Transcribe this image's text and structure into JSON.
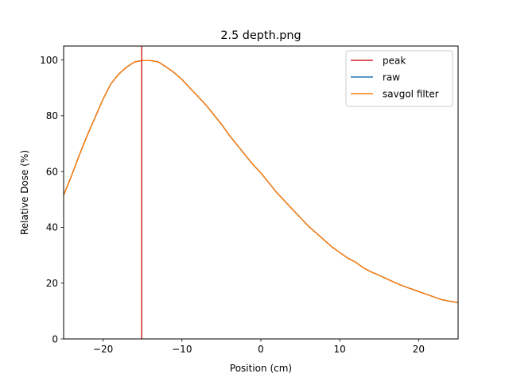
{
  "chart_data": {
    "type": "line",
    "title": "2.5 depth.png",
    "xlabel": "Position (cm)",
    "ylabel": "Relative Dose (%)",
    "xlim": [
      -25,
      25
    ],
    "ylim": [
      0,
      105
    ],
    "xticks": [
      -20,
      -10,
      0,
      10,
      20
    ],
    "xtick_labels": [
      "−20",
      "−10",
      "0",
      "10",
      "20"
    ],
    "yticks": [
      0,
      20,
      40,
      60,
      80,
      100
    ],
    "ytick_labels": [
      "0",
      "20",
      "40",
      "60",
      "80",
      "100"
    ],
    "grid": false,
    "legend_position": "top-right",
    "peak": {
      "name": "peak",
      "x": -15.1,
      "color": "#d62728"
    },
    "series": [
      {
        "name": "raw",
        "color": "#1f77b4",
        "x": [
          -25,
          -24,
          -23,
          -22,
          -21,
          -20,
          -19,
          -18,
          -17,
          -16,
          -15,
          -14,
          -13,
          -12,
          -11,
          -10,
          -9,
          -8,
          -7,
          -6,
          -5,
          -4,
          -3,
          -2,
          -1,
          0,
          1,
          2,
          3,
          4,
          5,
          6,
          7,
          8,
          9,
          10,
          11,
          12,
          13,
          14,
          15,
          16,
          17,
          18,
          19,
          20,
          21,
          22,
          23,
          24,
          25
        ],
        "y": [
          51.5,
          58.5,
          66,
          73,
          79.5,
          86,
          91.5,
          95,
          97.5,
          99.3,
          99.8,
          99.8,
          99.3,
          97.5,
          95.5,
          93,
          90,
          87,
          84,
          80.5,
          77,
          73,
          69.5,
          66,
          62.5,
          59.5,
          56,
          52.5,
          49.5,
          46.5,
          43.5,
          40.5,
          38,
          35.5,
          33,
          31,
          29,
          27.5,
          25.5,
          24,
          22.8,
          21.5,
          20.2,
          19,
          18,
          17,
          16,
          15,
          14,
          13.5,
          13
        ]
      },
      {
        "name": "savgol filter",
        "color": "#ff7f0e",
        "x": [
          -25,
          -24,
          -23,
          -22,
          -21,
          -20,
          -19,
          -18,
          -17,
          -16,
          -15,
          -14,
          -13,
          -12,
          -11,
          -10,
          -9,
          -8,
          -7,
          -6,
          -5,
          -4,
          -3,
          -2,
          -1,
          0,
          1,
          2,
          3,
          4,
          5,
          6,
          7,
          8,
          9,
          10,
          11,
          12,
          13,
          14,
          15,
          16,
          17,
          18,
          19,
          20,
          21,
          22,
          23,
          24,
          25
        ],
        "y": [
          51.5,
          58.5,
          66,
          73,
          79.5,
          86,
          91.5,
          95,
          97.5,
          99.3,
          99.8,
          99.8,
          99.3,
          97.5,
          95.5,
          93,
          90,
          87,
          84,
          80.5,
          77,
          73,
          69.5,
          66,
          62.5,
          59.5,
          56,
          52.5,
          49.5,
          46.5,
          43.5,
          40.5,
          38,
          35.5,
          33,
          31,
          29,
          27.5,
          25.5,
          24,
          22.8,
          21.5,
          20.2,
          19,
          18,
          17,
          16,
          15,
          14,
          13.5,
          13
        ]
      }
    ]
  }
}
